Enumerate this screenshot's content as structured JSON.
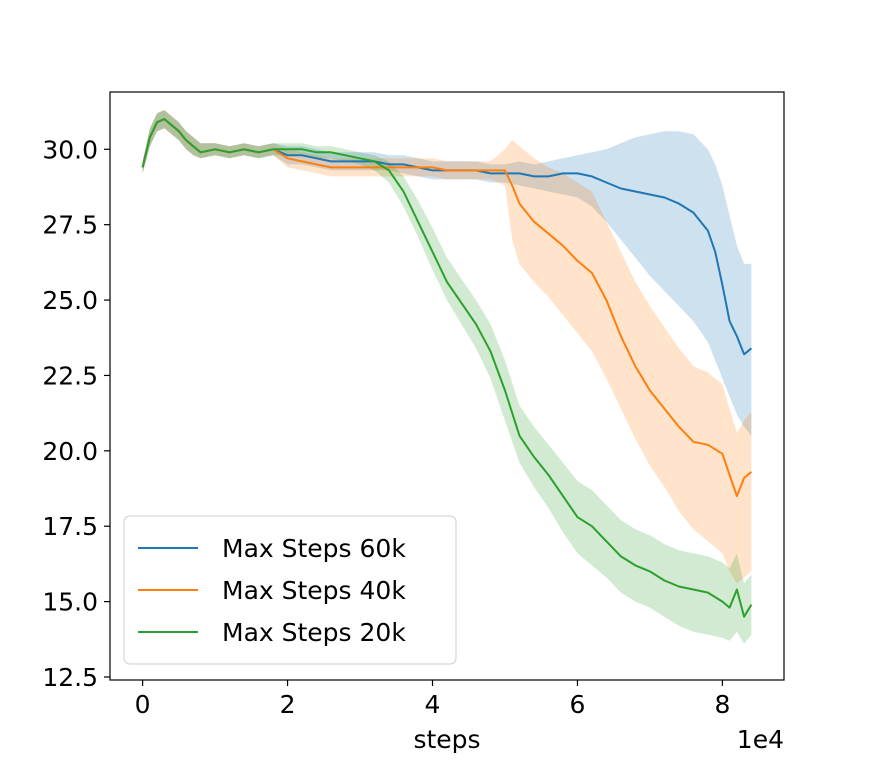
{
  "chart_data": {
    "type": "line",
    "title": "",
    "xlabel": "steps",
    "ylabel": "",
    "x_offset_label": "1e4",
    "xlim": [
      -0.45,
      8.85
    ],
    "ylim": [
      12.4,
      31.9
    ],
    "xticks": [
      0,
      2,
      4,
      6,
      8
    ],
    "xtick_labels": [
      "0",
      "2",
      "4",
      "6",
      "8"
    ],
    "yticks": [
      12.5,
      15.0,
      17.5,
      20.0,
      22.5,
      25.0,
      27.5,
      30.0
    ],
    "ytick_labels": [
      "12.5",
      "15.0",
      "17.5",
      "20.0",
      "22.5",
      "25.0",
      "27.5",
      "30.0"
    ],
    "grid": false,
    "legend_position": "lower-left",
    "series": [
      {
        "name": "Max Steps 60k",
        "color": "#1f77b4",
        "x": [
          0,
          0.1,
          0.2,
          0.3,
          0.4,
          0.5,
          0.6,
          0.7,
          0.8,
          1.0,
          1.2,
          1.4,
          1.6,
          1.8,
          2.0,
          2.2,
          2.4,
          2.6,
          2.8,
          3.0,
          3.2,
          3.4,
          3.6,
          3.8,
          4.0,
          4.2,
          4.4,
          4.6,
          4.8,
          5.0,
          5.2,
          5.4,
          5.6,
          5.8,
          6.0,
          6.2,
          6.4,
          6.6,
          6.8,
          7.0,
          7.2,
          7.4,
          7.6,
          7.8,
          7.9,
          8.0,
          8.1,
          8.2,
          8.3,
          8.4
        ],
        "y": [
          29.4,
          30.4,
          30.9,
          31.0,
          30.8,
          30.6,
          30.3,
          30.1,
          29.9,
          30.0,
          29.9,
          30.0,
          29.9,
          30.0,
          29.8,
          29.8,
          29.7,
          29.6,
          29.6,
          29.6,
          29.6,
          29.5,
          29.5,
          29.4,
          29.3,
          29.3,
          29.3,
          29.3,
          29.2,
          29.2,
          29.2,
          29.1,
          29.1,
          29.2,
          29.2,
          29.1,
          28.9,
          28.7,
          28.6,
          28.5,
          28.4,
          28.2,
          27.9,
          27.3,
          26.6,
          25.5,
          24.3,
          23.8,
          23.2,
          23.4
        ],
        "band_low": [
          29.2,
          30.1,
          30.6,
          30.7,
          30.5,
          30.3,
          30.0,
          29.8,
          29.7,
          29.8,
          29.7,
          29.8,
          29.7,
          29.8,
          29.5,
          29.5,
          29.4,
          29.3,
          29.3,
          29.3,
          29.3,
          29.3,
          29.2,
          29.1,
          29.0,
          29.0,
          29.0,
          29.0,
          28.9,
          28.9,
          28.8,
          28.7,
          28.6,
          28.5,
          28.4,
          28.1,
          27.6,
          27.0,
          26.4,
          25.8,
          25.3,
          24.8,
          24.3,
          23.6,
          23.0,
          22.4,
          21.8,
          21.2,
          20.8,
          20.5
        ],
        "band_high": [
          29.6,
          30.7,
          31.2,
          31.3,
          31.1,
          30.9,
          30.6,
          30.4,
          30.2,
          30.2,
          30.1,
          30.2,
          30.1,
          30.2,
          30.1,
          30.1,
          30.0,
          29.9,
          29.9,
          29.9,
          29.9,
          29.8,
          29.8,
          29.7,
          29.6,
          29.6,
          29.6,
          29.6,
          29.5,
          29.5,
          29.6,
          29.5,
          29.6,
          29.7,
          29.8,
          29.9,
          30.0,
          30.2,
          30.4,
          30.5,
          30.6,
          30.6,
          30.5,
          30.0,
          29.5,
          28.8,
          27.8,
          26.8,
          26.2,
          26.2
        ]
      },
      {
        "name": "Max Steps 40k",
        "color": "#ff7f0e",
        "x": [
          0,
          0.1,
          0.2,
          0.3,
          0.4,
          0.5,
          0.6,
          0.7,
          0.8,
          1.0,
          1.2,
          1.4,
          1.6,
          1.8,
          2.0,
          2.2,
          2.4,
          2.6,
          2.8,
          3.0,
          3.2,
          3.4,
          3.6,
          3.8,
          4.0,
          4.2,
          4.4,
          4.6,
          4.8,
          5.0,
          5.1,
          5.2,
          5.4,
          5.6,
          5.8,
          6.0,
          6.2,
          6.4,
          6.6,
          6.8,
          7.0,
          7.2,
          7.4,
          7.6,
          7.8,
          8.0,
          8.1,
          8.2,
          8.3,
          8.4
        ],
        "y": [
          29.4,
          30.4,
          30.9,
          31.0,
          30.8,
          30.6,
          30.3,
          30.1,
          29.9,
          30.0,
          29.9,
          30.0,
          29.9,
          30.0,
          29.7,
          29.6,
          29.5,
          29.4,
          29.4,
          29.4,
          29.4,
          29.4,
          29.4,
          29.4,
          29.4,
          29.3,
          29.3,
          29.3,
          29.3,
          29.3,
          28.8,
          28.2,
          27.6,
          27.2,
          26.8,
          26.3,
          25.9,
          25.0,
          23.8,
          22.8,
          22.0,
          21.4,
          20.8,
          20.3,
          20.2,
          19.9,
          19.2,
          18.5,
          19.1,
          19.3
        ],
        "band_low": [
          29.2,
          30.1,
          30.6,
          30.7,
          30.5,
          30.3,
          30.0,
          29.8,
          29.7,
          29.8,
          29.7,
          29.8,
          29.7,
          29.8,
          29.4,
          29.3,
          29.2,
          29.1,
          29.1,
          29.1,
          29.1,
          29.1,
          29.1,
          29.1,
          29.1,
          29.0,
          29.0,
          29.0,
          29.0,
          28.8,
          27.0,
          26.2,
          25.6,
          25.1,
          24.5,
          23.9,
          23.3,
          22.4,
          21.4,
          20.4,
          19.5,
          18.8,
          18.0,
          17.4,
          17.0,
          16.6,
          16.0,
          15.6,
          15.8,
          16.0
        ],
        "band_high": [
          29.6,
          30.7,
          31.2,
          31.3,
          31.1,
          30.9,
          30.6,
          30.4,
          30.2,
          30.2,
          30.1,
          30.2,
          30.1,
          30.2,
          30.0,
          29.9,
          29.8,
          29.7,
          29.7,
          29.7,
          29.7,
          29.7,
          29.7,
          29.7,
          29.7,
          29.6,
          29.6,
          29.6,
          29.6,
          30.0,
          30.3,
          30.1,
          29.7,
          29.4,
          29.2,
          28.9,
          28.6,
          27.6,
          26.6,
          25.6,
          24.8,
          24.1,
          23.4,
          22.8,
          22.6,
          22.2,
          21.4,
          20.6,
          21.0,
          21.3
        ]
      },
      {
        "name": "Max Steps 20k",
        "color": "#2ca02c",
        "x": [
          0,
          0.1,
          0.2,
          0.3,
          0.4,
          0.5,
          0.6,
          0.7,
          0.8,
          1.0,
          1.2,
          1.4,
          1.6,
          1.8,
          2.0,
          2.2,
          2.4,
          2.6,
          2.8,
          3.0,
          3.2,
          3.4,
          3.6,
          3.8,
          4.0,
          4.2,
          4.4,
          4.6,
          4.8,
          5.0,
          5.2,
          5.4,
          5.6,
          5.8,
          6.0,
          6.2,
          6.4,
          6.6,
          6.8,
          7.0,
          7.2,
          7.4,
          7.6,
          7.8,
          8.0,
          8.1,
          8.2,
          8.3,
          8.4
        ],
        "y": [
          29.4,
          30.4,
          30.9,
          31.0,
          30.8,
          30.6,
          30.3,
          30.1,
          29.9,
          30.0,
          29.9,
          30.0,
          29.9,
          30.0,
          30.0,
          30.0,
          29.9,
          29.9,
          29.8,
          29.7,
          29.6,
          29.3,
          28.6,
          27.6,
          26.6,
          25.6,
          24.9,
          24.2,
          23.3,
          22.0,
          20.5,
          19.8,
          19.2,
          18.5,
          17.8,
          17.5,
          17.0,
          16.5,
          16.2,
          16.0,
          15.7,
          15.5,
          15.4,
          15.3,
          15.0,
          14.8,
          15.4,
          14.5,
          14.9
        ],
        "band_low": [
          29.2,
          30.1,
          30.6,
          30.7,
          30.5,
          30.3,
          30.0,
          29.8,
          29.7,
          29.8,
          29.7,
          29.8,
          29.7,
          29.8,
          29.8,
          29.8,
          29.7,
          29.7,
          29.6,
          29.5,
          29.3,
          28.9,
          28.1,
          27.1,
          26.0,
          25.0,
          24.2,
          23.4,
          22.4,
          21.0,
          19.6,
          18.8,
          18.1,
          17.3,
          16.6,
          16.2,
          15.8,
          15.3,
          15.0,
          14.8,
          14.5,
          14.2,
          14.0,
          13.9,
          13.8,
          13.7,
          14.0,
          13.6,
          13.9
        ],
        "band_high": [
          29.6,
          30.7,
          31.2,
          31.3,
          31.1,
          30.9,
          30.6,
          30.4,
          30.2,
          30.2,
          30.1,
          30.2,
          30.1,
          30.2,
          30.2,
          30.2,
          30.1,
          30.1,
          30.0,
          29.9,
          29.8,
          29.6,
          29.1,
          28.3,
          27.4,
          26.4,
          25.7,
          25.0,
          24.2,
          23.0,
          21.5,
          20.8,
          20.2,
          19.6,
          19.0,
          18.7,
          18.2,
          17.7,
          17.4,
          17.2,
          16.9,
          16.7,
          16.6,
          16.5,
          16.3,
          16.1,
          16.6,
          15.6,
          15.9
        ]
      }
    ]
  }
}
